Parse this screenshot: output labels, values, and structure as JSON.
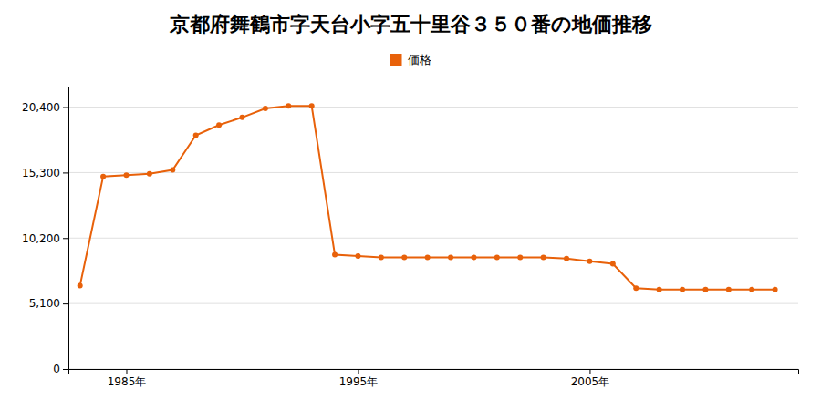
{
  "chart_data": {
    "type": "line",
    "title": "京都府舞鶴市字天台小字五十里谷３５０番の地価推移",
    "x": [
      1983,
      1984,
      1985,
      1986,
      1987,
      1988,
      1989,
      1990,
      1991,
      1992,
      1993,
      1994,
      1995,
      1996,
      1997,
      1998,
      1999,
      2000,
      2001,
      2002,
      2003,
      2004,
      2005,
      2006,
      2007,
      2008,
      2009,
      2010,
      2011,
      2012,
      2013
    ],
    "series": [
      {
        "name": "価格",
        "color": "#e8610a",
        "marker": "circle",
        "values": [
          6500,
          15000,
          15100,
          15200,
          15500,
          18200,
          19000,
          19600,
          20300,
          20500,
          20500,
          8900,
          8800,
          8700,
          8700,
          8700,
          8700,
          8700,
          8700,
          8700,
          8700,
          8600,
          8400,
          8200,
          6300,
          6200,
          6200,
          6200,
          6200,
          6200,
          6200
        ]
      }
    ],
    "xlim": [
      1982.5,
      2014
    ],
    "xticks": [
      {
        "value": 1985,
        "label": "1985年"
      },
      {
        "value": 1995,
        "label": "1995年"
      },
      {
        "value": 2005,
        "label": "2005年"
      }
    ],
    "ylim": [
      0,
      22000
    ],
    "yticks": [
      0,
      {
        "value": 5100,
        "label": "5,100"
      },
      {
        "value": 10200,
        "label": "10,200"
      },
      {
        "value": 15300,
        "label": "15,300"
      },
      {
        "value": 20400,
        "label": "20,400"
      }
    ],
    "grid": true,
    "legend": "top"
  }
}
